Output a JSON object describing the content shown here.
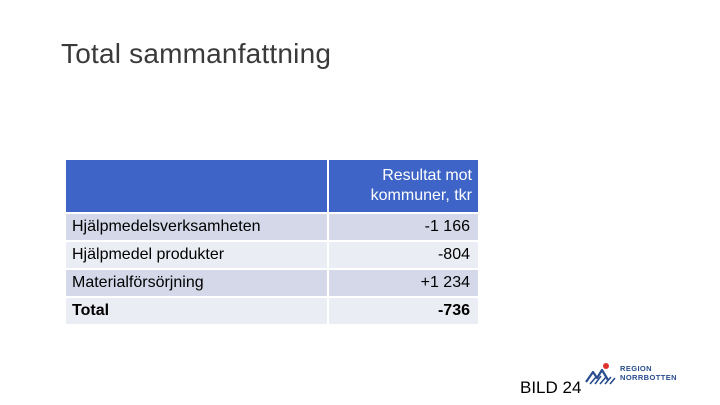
{
  "title": "Total sammanfattning",
  "table": {
    "header": [
      "",
      "Resultat mot kommuner, tkr"
    ],
    "header_lines": [
      "Resultat mot",
      "kommuner, tkr"
    ],
    "rows": [
      {
        "label": "Hjälpmedelsverksamheten",
        "value": "-1 166"
      },
      {
        "label": "Hjälpmedel produkter",
        "value": "-804"
      },
      {
        "label": "Materialförsörjning",
        "value": "+1 234"
      },
      {
        "label": "Total",
        "value": "-736"
      }
    ]
  },
  "footer": {
    "slide_label": "BILD 24",
    "logo_lines": [
      "REGION",
      "NORRBOTTEN"
    ]
  },
  "colors": {
    "header_bg": "#3D64C6",
    "row_dark": "#D4D8E8",
    "row_light": "#EBEDF4",
    "logo_blue": "#2a4d8f",
    "logo_red": "#e0312b"
  }
}
